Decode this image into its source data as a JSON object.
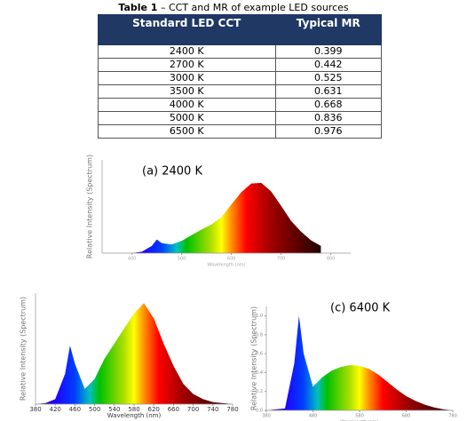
{
  "table": {
    "caption_label": "Table 1",
    "caption_text": "– CCT and MR of example LED sources",
    "header": [
      "Standard LED CCT",
      "Typical MR"
    ],
    "rows": [
      [
        "2400 K",
        "0.399"
      ],
      [
        "2700 K",
        "0.442"
      ],
      [
        "3000 K",
        "0.525"
      ],
      [
        "3500 K",
        "0.631"
      ],
      [
        "4000 K",
        "0.668"
      ],
      [
        "5000 K",
        "0.836"
      ],
      [
        "6500 K",
        "0.976"
      ]
    ]
  },
  "chart_data": [
    {
      "type": "area",
      "title": "(a) 2400 K",
      "xlabel": "Wavelength (nm)",
      "ylabel": "Relative Intensity (Spectrum)",
      "x": [
        380,
        400,
        420,
        440,
        450,
        460,
        480,
        500,
        520,
        540,
        560,
        580,
        600,
        620,
        640,
        660,
        680,
        700,
        720,
        740,
        760,
        780
      ],
      "values": [
        0,
        0,
        0.02,
        0.1,
        0.19,
        0.14,
        0.12,
        0.17,
        0.25,
        0.33,
        0.4,
        0.5,
        0.68,
        0.85,
        0.97,
        0.98,
        0.86,
        0.66,
        0.45,
        0.3,
        0.18,
        0.1
      ],
      "xlim": [
        340,
        840
      ],
      "ylim": [
        0,
        1.3
      ],
      "xticks": [
        400,
        500,
        600,
        700,
        800
      ]
    },
    {
      "type": "area",
      "xlabel": "Wavelength (nm)",
      "ylabel": "Relative Intensity (Spectrum)",
      "x": [
        380,
        400,
        420,
        440,
        450,
        460,
        480,
        500,
        520,
        540,
        560,
        580,
        600,
        620,
        640,
        660,
        680,
        700,
        720,
        740,
        760,
        780
      ],
      "values": [
        0,
        0.01,
        0.05,
        0.3,
        0.58,
        0.4,
        0.15,
        0.25,
        0.45,
        0.6,
        0.75,
        0.9,
        1.0,
        0.85,
        0.6,
        0.38,
        0.2,
        0.1,
        0.05,
        0.02,
        0.01,
        0
      ],
      "xlim": [
        380,
        780
      ],
      "ylim": [
        0,
        1.1
      ],
      "xticks": [
        380,
        420,
        460,
        500,
        540,
        580,
        620,
        660,
        700,
        740,
        780
      ]
    },
    {
      "type": "area",
      "title": "(c) 6400 K",
      "xlabel": "Wavelength (nm)",
      "ylabel": "Relative Intensity (Spectrum)",
      "x": [
        380,
        400,
        420,
        440,
        450,
        460,
        480,
        500,
        520,
        540,
        560,
        580,
        600,
        620,
        640,
        660,
        680,
        700,
        720,
        740,
        760,
        780
      ],
      "values": [
        0,
        0.01,
        0.02,
        0.5,
        1.0,
        0.6,
        0.25,
        0.35,
        0.42,
        0.46,
        0.48,
        0.47,
        0.44,
        0.38,
        0.3,
        0.22,
        0.15,
        0.1,
        0.06,
        0.03,
        0.01,
        0
      ],
      "xlim": [
        380,
        780
      ],
      "ylim": [
        0,
        1.1
      ],
      "xticks": [
        380,
        480,
        580,
        680,
        780
      ],
      "yticks": [
        {
          "value": 0,
          "label": "0.0"
        },
        {
          "value": 0.2,
          "label": "0.2"
        },
        {
          "value": 0.4,
          "label": "0.4"
        },
        {
          "value": 0.6,
          "label": "0.6"
        },
        {
          "value": 0.8,
          "label": "0.8"
        },
        {
          "value": 1,
          "label": "1.0"
        }
      ]
    }
  ]
}
